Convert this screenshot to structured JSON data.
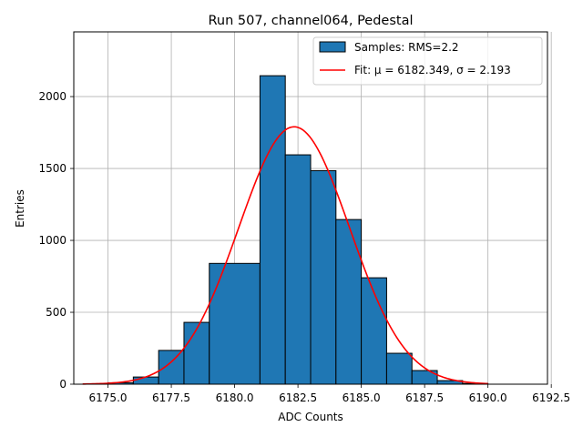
{
  "chart_data": {
    "type": "bar",
    "title": "Run 507, channel064, Pedestal",
    "xlabel": "ADC Counts",
    "ylabel": "Entries",
    "xlim": [
      6173.65,
      6192.35
    ],
    "ylim": [
      0,
      2450
    ],
    "xticks": [
      6175.0,
      6177.5,
      6180.0,
      6182.5,
      6185.0,
      6187.5,
      6190.0,
      6192.5
    ],
    "xtick_labels": [
      "6175.0",
      "6177.5",
      "6180.0",
      "6182.5",
      "6185.0",
      "6187.5",
      "6190.0",
      "6192.5"
    ],
    "yticks": [
      0,
      500,
      1000,
      1500,
      2000
    ],
    "ytick_labels": [
      "0",
      "500",
      "1000",
      "1500",
      "2000"
    ],
    "grid": true,
    "legend_position": "top-right",
    "histogram": {
      "name": "Samples: RMS=2.2",
      "color": "#1f77b4",
      "edgecolor": "#000000",
      "bins": [
        {
          "x0": 6175.0,
          "x1": 6176.0,
          "count": 10
        },
        {
          "x0": 6176.0,
          "x1": 6177.0,
          "count": 50
        },
        {
          "x0": 6177.0,
          "x1": 6178.0,
          "count": 235
        },
        {
          "x0": 6178.0,
          "x1": 6179.0,
          "count": 430
        },
        {
          "x0": 6179.0,
          "x1": 6181.0,
          "count": 840
        },
        {
          "x0": 6181.0,
          "x1": 6182.0,
          "count": 2145
        },
        {
          "x0": 6182.0,
          "x1": 6183.0,
          "count": 1595
        },
        {
          "x0": 6183.0,
          "x1": 6184.0,
          "count": 1485
        },
        {
          "x0": 6184.0,
          "x1": 6185.0,
          "count": 1145
        },
        {
          "x0": 6185.0,
          "x1": 6186.0,
          "count": 740
        },
        {
          "x0": 6186.0,
          "x1": 6187.0,
          "count": 215
        },
        {
          "x0": 6187.0,
          "x1": 6188.0,
          "count": 95
        },
        {
          "x0": 6188.0,
          "x1": 6189.0,
          "count": 25
        },
        {
          "x0": 6189.0,
          "x1": 6190.0,
          "count": 5
        }
      ]
    },
    "fit": {
      "name": "Fit: μ = 6182.349, σ = 2.193",
      "color": "#ff0000",
      "mu": 6182.349,
      "sigma": 2.193,
      "amplitude": 1790,
      "x_range": [
        6174.0,
        6190.0
      ]
    }
  }
}
